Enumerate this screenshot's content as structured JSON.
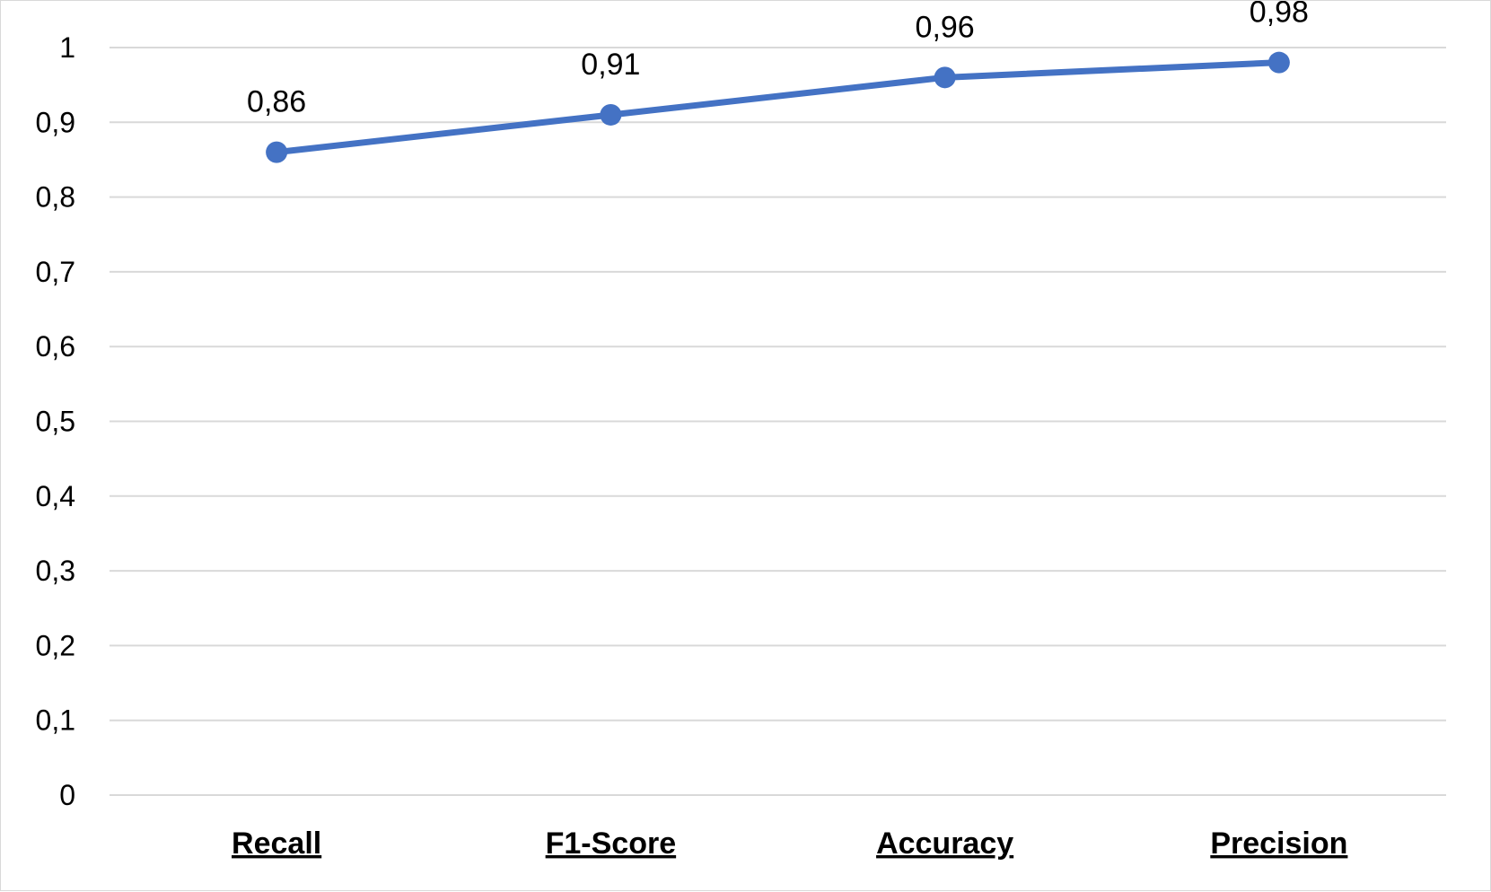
{
  "chart_data": {
    "type": "line",
    "title": "",
    "xlabel": "",
    "ylabel": "",
    "categories": [
      "Recall",
      "F1-Score",
      "Accuracy",
      "Precision"
    ],
    "series": [
      {
        "values": [
          0.86,
          0.91,
          0.96,
          0.98
        ],
        "data_labels": [
          "0,86",
          "0,91",
          "0,96",
          "0,98"
        ]
      }
    ],
    "ylim": [
      0,
      1
    ],
    "y_ticks": [
      0,
      0.1,
      0.2,
      0.3,
      0.4,
      0.5,
      0.6,
      0.7,
      0.8,
      0.9,
      1
    ],
    "y_tick_labels": [
      "0",
      "0,1",
      "0,2",
      "0,3",
      "0,4",
      "0,5",
      "0,6",
      "0,7",
      "0,8",
      "0,9",
      "1"
    ],
    "grid": true,
    "legend": "none",
    "colors": {
      "series": "#4472c4",
      "grid": "#d9d9d9",
      "text": "#000000"
    }
  }
}
